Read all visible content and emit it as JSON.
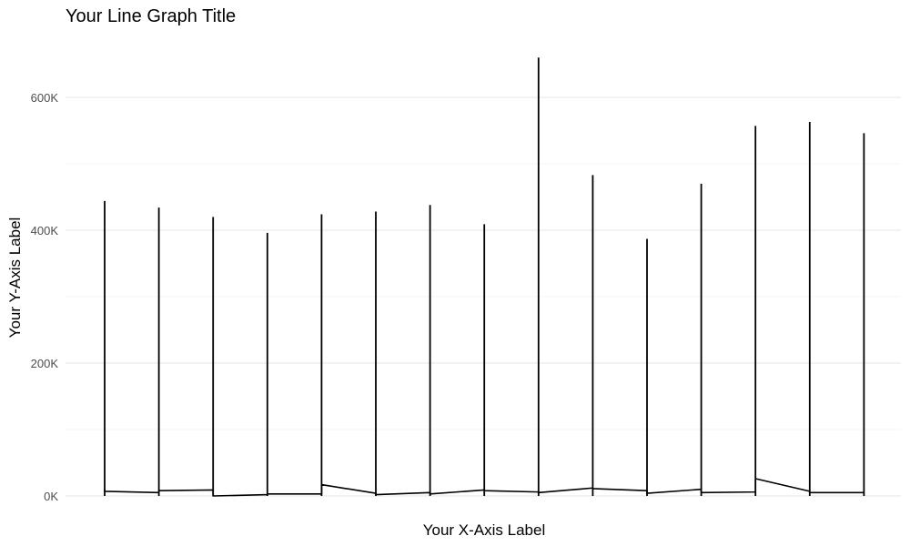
{
  "chart_data": {
    "type": "line",
    "title": "Your Line Graph Title",
    "xlabel": "Your X-Axis Label",
    "ylabel": "Your Y-Axis Label",
    "ylim": [
      0,
      660000
    ],
    "y_ticks": [
      0,
      200000,
      400000,
      600000
    ],
    "y_tick_labels": [
      "0K",
      "200K",
      "400K",
      "600K"
    ],
    "grid": true,
    "legend": "none",
    "line_color": "#000000",
    "groups": [
      {
        "x": 1,
        "low": 10000,
        "high": 444000,
        "next_start": 7000
      },
      {
        "x": 2,
        "low": 5000,
        "high": 434000,
        "next_start": 8000
      },
      {
        "x": 3,
        "low": 9000,
        "high": 420000,
        "next_start": 0
      },
      {
        "x": 4,
        "low": 2000,
        "high": 396000,
        "next_start": 3000
      },
      {
        "x": 5,
        "low": 3000,
        "high": 424000,
        "next_start": 17000
      },
      {
        "x": 6,
        "low": 4000,
        "high": 428000,
        "next_start": 2000
      },
      {
        "x": 7,
        "low": 5000,
        "high": 438000,
        "next_start": 3000
      },
      {
        "x": 8,
        "low": 9000,
        "high": 409000,
        "next_start": 8000
      },
      {
        "x": 9,
        "low": 6000,
        "high": 660000,
        "next_start": 5000
      },
      {
        "x": 10,
        "low": 12000,
        "high": 483000,
        "next_start": 11000
      },
      {
        "x": 11,
        "low": 8000,
        "high": 387000,
        "next_start": 4000
      },
      {
        "x": 12,
        "low": 10000,
        "high": 470000,
        "next_start": 5000
      },
      {
        "x": 13,
        "low": 6000,
        "high": 557000,
        "next_start": 26000
      },
      {
        "x": 14,
        "low": 7000,
        "high": 563000,
        "next_start": 5000
      },
      {
        "x": 15,
        "low": 5000,
        "high": 546000,
        "next_start": 5000
      }
    ]
  }
}
